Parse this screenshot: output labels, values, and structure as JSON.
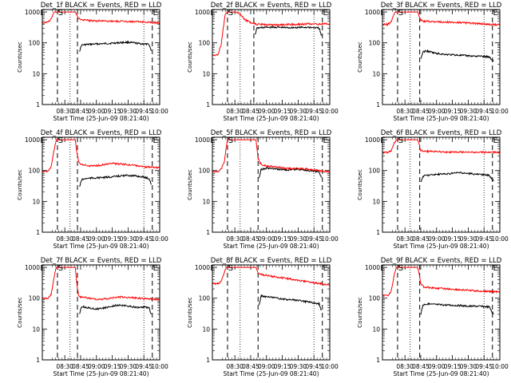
{
  "figure": {
    "xlabel": "Start Time (25-Jun-09 08:21:40)",
    "ylabel": "Counts/sec",
    "x_tick_labels": [
      "08:30",
      "08:45",
      "09:00",
      "09:15",
      "09:30",
      "09:45",
      "10:00"
    ],
    "y_tick_labels": [
      "1",
      "10",
      "100",
      "1000"
    ],
    "colors": {
      "events": "#000000",
      "lld": "#ff0000",
      "axes": "#000000",
      "background": "#ffffff"
    }
  },
  "chart_data": [
    {
      "type": "line",
      "title": "Det_1f BLACK = Events, RED = LLD",
      "x_range_min": [
        8.667,
        120
      ],
      "yscale": "log",
      "ylim": [
        1,
        1200
      ],
      "dashed_lines_min": [
        23,
        42,
        113
      ],
      "dotted_lines_min": [
        35,
        105
      ],
      "markers": [
        {
          "label": "E",
          "x_min": 9
        },
        {
          "label": "S",
          "x_min": 26
        },
        {
          "label": "E",
          "x_min": 116
        }
      ],
      "series": [
        {
          "name": "Events",
          "color": "#000000",
          "x": [
            44,
            46,
            50,
            55,
            60,
            70,
            80,
            90,
            95,
            100,
            105,
            110,
            112
          ],
          "y": [
            55,
            85,
            88,
            90,
            92,
            95,
            100,
            105,
            100,
            95,
            92,
            88,
            55
          ]
        },
        {
          "name": "LLD",
          "color": "#ff0000",
          "x": [
            9,
            14,
            17,
            20,
            22,
            23,
            35,
            40,
            41,
            42,
            43,
            45,
            50,
            60,
            70,
            80,
            90,
            100,
            110,
            120
          ],
          "y": [
            450,
            460,
            600,
            1000,
            1000,
            1000,
            1000,
            1000,
            900,
            700,
            620,
            560,
            540,
            520,
            510,
            500,
            495,
            485,
            460,
            445
          ]
        }
      ]
    },
    {
      "type": "line",
      "title": "Det_2f BLACK = Events, RED = LLD",
      "x_range_min": [
        8.667,
        120
      ],
      "yscale": "log",
      "ylim": [
        1,
        1200
      ],
      "dashed_lines_min": [
        23,
        48,
        113
      ],
      "dotted_lines_min": [
        35,
        105
      ],
      "markers": [
        {
          "label": "E",
          "x_min": 9
        },
        {
          "label": "S",
          "x_min": 26
        },
        {
          "label": "E",
          "x_min": 116
        }
      ],
      "series": [
        {
          "name": "Events",
          "color": "#000000",
          "x": [
            49,
            51,
            55,
            60,
            70,
            80,
            90,
            100,
            106,
            110,
            112
          ],
          "y": [
            180,
            300,
            310,
            320,
            320,
            310,
            315,
            320,
            310,
            300,
            170
          ]
        },
        {
          "name": "LLD",
          "color": "#ff0000",
          "x": [
            9,
            14,
            17,
            19,
            21,
            23,
            25,
            27,
            29,
            31,
            34,
            37,
            40,
            44,
            48,
            50,
            55,
            60,
            70,
            80,
            90,
            100,
            110,
            120
          ],
          "y": [
            40,
            40,
            90,
            300,
            900,
            1000,
            1000,
            1000,
            1000,
            1000,
            900,
            700,
            550,
            470,
            420,
            400,
            395,
            390,
            380,
            390,
            400,
            410,
            410,
            410
          ]
        }
      ]
    },
    {
      "type": "line",
      "title": "Det_3f BLACK = Events, RED = LLD",
      "x_range_min": [
        8.667,
        120
      ],
      "yscale": "log",
      "ylim": [
        1,
        1200
      ],
      "dashed_lines_min": [
        23,
        44,
        113
      ],
      "dotted_lines_min": [
        35,
        105
      ],
      "markers": [
        {
          "label": "E",
          "x_min": 9
        },
        {
          "label": "S",
          "x_min": 26
        },
        {
          "label": "E",
          "x_min": 116
        }
      ],
      "series": [
        {
          "name": "Events",
          "color": "#000000",
          "x": [
            45,
            47,
            50,
            60,
            70,
            80,
            90,
            100,
            110,
            114
          ],
          "y": [
            30,
            50,
            55,
            45,
            42,
            40,
            38,
            37,
            35,
            25
          ]
        },
        {
          "name": "LLD",
          "color": "#ff0000",
          "x": [
            9,
            14,
            17,
            20,
            22,
            23,
            30,
            38,
            42,
            44,
            45,
            48,
            60,
            70,
            80,
            90,
            100,
            110,
            120
          ],
          "y": [
            400,
            400,
            500,
            900,
            1000,
            1000,
            1000,
            1000,
            1000,
            700,
            560,
            500,
            480,
            470,
            460,
            440,
            420,
            400,
            380
          ]
        }
      ]
    },
    {
      "type": "line",
      "title": "Det_4f BLACK = Events, RED = LLD",
      "x_range_min": [
        8.667,
        120
      ],
      "yscale": "log",
      "ylim": [
        1,
        1200
      ],
      "dashed_lines_min": [
        23,
        42,
        113
      ],
      "dotted_lines_min": [
        35,
        105
      ],
      "markers": [
        {
          "label": "E",
          "x_min": 9
        },
        {
          "label": "S",
          "x_min": 26
        },
        {
          "label": "E",
          "x_min": 116
        }
      ],
      "series": [
        {
          "name": "Events",
          "color": "#000000",
          "x": [
            44,
            46,
            50,
            60,
            70,
            80,
            90,
            100,
            106,
            110,
            112
          ],
          "y": [
            30,
            50,
            55,
            58,
            60,
            65,
            70,
            65,
            60,
            55,
            35
          ]
        },
        {
          "name": "LLD",
          "color": "#ff0000",
          "x": [
            9,
            14,
            17,
            20,
            22,
            23,
            35,
            40,
            41,
            42,
            43,
            45,
            48,
            55,
            65,
            75,
            85,
            95,
            105,
            112,
            120
          ],
          "y": [
            95,
            95,
            130,
            500,
            1000,
            1000,
            1000,
            1000,
            500,
            300,
            200,
            160,
            150,
            140,
            150,
            170,
            160,
            150,
            130,
            130,
            125
          ]
        }
      ]
    },
    {
      "type": "line",
      "title": "Det_5f BLACK = Events, RED = LLD",
      "x_range_min": [
        8.667,
        120
      ],
      "yscale": "log",
      "ylim": [
        1,
        1200
      ],
      "dashed_lines_min": [
        23,
        52,
        113
      ],
      "dotted_lines_min": [
        35,
        105
      ],
      "markers": [
        {
          "label": "E",
          "x_min": 9
        },
        {
          "label": "S",
          "x_min": 26
        },
        {
          "label": "E",
          "x_min": 116
        }
      ],
      "series": [
        {
          "name": "Events",
          "color": "#000000",
          "x": [
            53,
            55,
            60,
            70,
            80,
            90,
            100,
            110,
            112
          ],
          "y": [
            60,
            110,
            120,
            110,
            105,
            110,
            100,
            90,
            60
          ]
        },
        {
          "name": "LLD",
          "color": "#ff0000",
          "x": [
            9,
            14,
            17,
            20,
            22,
            23,
            30,
            38,
            45,
            50,
            51,
            52,
            54,
            58,
            65,
            75,
            85,
            95,
            105,
            112,
            120
          ],
          "y": [
            90,
            95,
            110,
            200,
            600,
            1000,
            1000,
            1000,
            1000,
            1000,
            500,
            250,
            170,
            145,
            135,
            120,
            115,
            115,
            105,
            95,
            90
          ]
        }
      ]
    },
    {
      "type": "line",
      "title": "Det_6f BLACK = Events, RED = LLD",
      "x_range_min": [
        8.667,
        120
      ],
      "yscale": "log",
      "ylim": [
        1,
        1200
      ],
      "dashed_lines_min": [
        23,
        44,
        113
      ],
      "dotted_lines_min": [
        35,
        105
      ],
      "markers": [
        {
          "label": "E",
          "x_min": 9
        },
        {
          "label": "S",
          "x_min": 26
        },
        {
          "label": "E",
          "x_min": 116
        }
      ],
      "series": [
        {
          "name": "Events",
          "color": "#000000",
          "x": [
            45,
            47,
            50,
            60,
            70,
            80,
            90,
            100,
            110,
            114
          ],
          "y": [
            40,
            65,
            70,
            75,
            78,
            85,
            80,
            75,
            70,
            45
          ]
        },
        {
          "name": "LLD",
          "color": "#ff0000",
          "x": [
            9,
            14,
            17,
            20,
            22,
            23,
            30,
            38,
            42,
            44,
            45,
            48,
            60,
            70,
            80,
            90,
            100,
            110,
            120
          ],
          "y": [
            380,
            385,
            450,
            800,
            1000,
            1000,
            1000,
            1000,
            1000,
            600,
            450,
            420,
            410,
            400,
            400,
            395,
            390,
            390,
            390
          ]
        }
      ]
    },
    {
      "type": "line",
      "title": "Det_7f BLACK = Events, RED = LLD",
      "x_range_min": [
        8.667,
        120
      ],
      "yscale": "log",
      "ylim": [
        1,
        1200
      ],
      "dashed_lines_min": [
        23,
        42,
        113
      ],
      "dotted_lines_min": [
        35,
        105
      ],
      "markers": [
        {
          "label": "E",
          "x_min": 9
        },
        {
          "label": "S",
          "x_min": 26
        },
        {
          "label": "E",
          "x_min": 116
        }
      ],
      "series": [
        {
          "name": "Events",
          "color": "#000000",
          "x": [
            44,
            46,
            50,
            60,
            70,
            80,
            90,
            100,
            106,
            110,
            112
          ],
          "y": [
            30,
            55,
            50,
            45,
            50,
            60,
            55,
            50,
            52,
            48,
            30
          ]
        },
        {
          "name": "LLD",
          "color": "#ff0000",
          "x": [
            9,
            14,
            17,
            20,
            22,
            23,
            35,
            40,
            41,
            42,
            43,
            45,
            50,
            60,
            70,
            80,
            90,
            100,
            110,
            120
          ],
          "y": [
            100,
            100,
            130,
            500,
            1000,
            1000,
            1000,
            1000,
            400,
            200,
            130,
            110,
            105,
            90,
            95,
            110,
            105,
            100,
            95,
            90
          ]
        }
      ]
    },
    {
      "type": "line",
      "title": "Det_8f BLACK = Events, RED = LLD",
      "x_range_min": [
        8.667,
        120
      ],
      "yscale": "log",
      "ylim": [
        1,
        1200
      ],
      "dashed_lines_min": [
        23,
        52,
        113
      ],
      "dotted_lines_min": [
        35,
        105
      ],
      "markers": [
        {
          "label": "E",
          "x_min": 9
        },
        {
          "label": "S",
          "x_min": 26
        },
        {
          "label": "E",
          "x_min": 116
        }
      ],
      "series": [
        {
          "name": "Events",
          "color": "#000000",
          "x": [
            53,
            55,
            60,
            70,
            80,
            90,
            100,
            110,
            112
          ],
          "y": [
            60,
            120,
            110,
            100,
            90,
            85,
            75,
            65,
            40
          ]
        },
        {
          "name": "LLD",
          "color": "#ff0000",
          "x": [
            9,
            14,
            17,
            20,
            22,
            23,
            30,
            38,
            45,
            50,
            51,
            52,
            54,
            60,
            70,
            80,
            90,
            100,
            110,
            120
          ],
          "y": [
            300,
            300,
            350,
            700,
            1000,
            1000,
            1000,
            1000,
            1000,
            1000,
            800,
            650,
            600,
            550,
            480,
            430,
            380,
            340,
            300,
            260
          ]
        }
      ]
    },
    {
      "type": "line",
      "title": "Det_9f BLACK = Events, RED = LLD",
      "x_range_min": [
        8.667,
        120
      ],
      "yscale": "log",
      "ylim": [
        1,
        1200
      ],
      "dashed_lines_min": [
        23,
        44,
        113
      ],
      "dotted_lines_min": [
        35,
        105
      ],
      "markers": [
        {
          "label": "E",
          "x_min": 9
        },
        {
          "label": "S",
          "x_min": 26
        },
        {
          "label": "E",
          "x_min": 116
        }
      ],
      "series": [
        {
          "name": "Events",
          "color": "#000000",
          "x": [
            45,
            47,
            50,
            60,
            70,
            80,
            90,
            100,
            110,
            114
          ],
          "y": [
            30,
            60,
            65,
            62,
            60,
            58,
            55,
            55,
            52,
            30
          ]
        },
        {
          "name": "LLD",
          "color": "#ff0000",
          "x": [
            9,
            14,
            17,
            20,
            22,
            23,
            30,
            38,
            42,
            44,
            45,
            48,
            60,
            70,
            80,
            90,
            100,
            110,
            120
          ],
          "y": [
            120,
            125,
            170,
            600,
            1000,
            1000,
            1000,
            1000,
            1000,
            500,
            300,
            230,
            210,
            200,
            190,
            180,
            170,
            165,
            160
          ]
        }
      ]
    }
  ]
}
